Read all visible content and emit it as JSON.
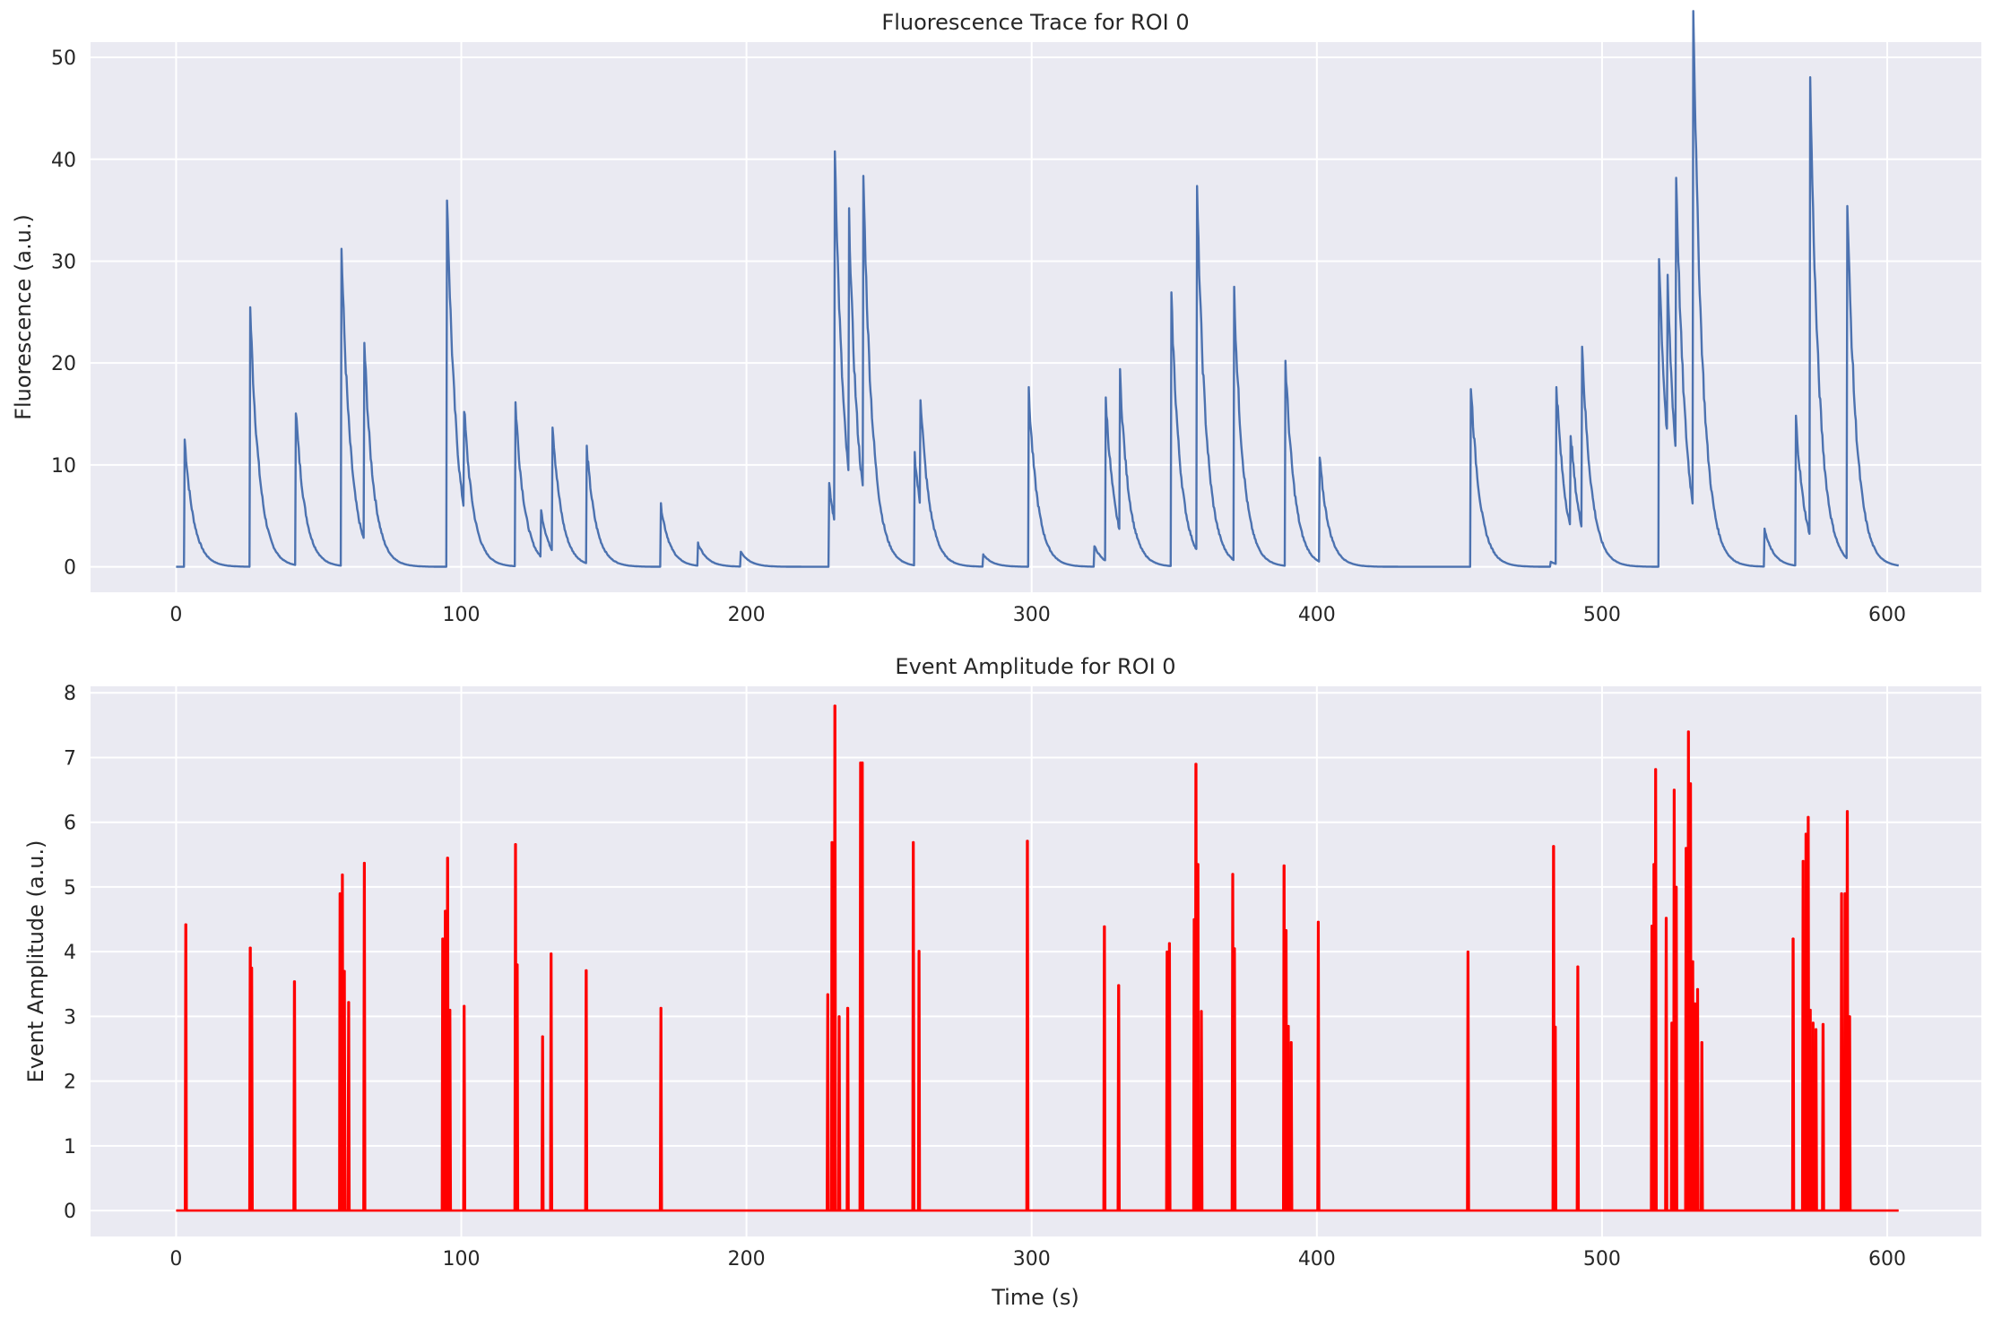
{
  "chart_data": [
    {
      "type": "line",
      "title": "Fluorescence Trace for ROI 0",
      "xlabel": "",
      "ylabel": "Fluorescence (a.u.)",
      "xlim": [
        -30,
        633
      ],
      "ylim": [
        -2.5,
        51.5
      ],
      "xticks": [
        0,
        100,
        200,
        300,
        400,
        500,
        600
      ],
      "yticks": [
        0,
        10,
        20,
        30,
        40,
        50
      ],
      "grid": true,
      "color": "#4c72b0",
      "events": [
        [
          3,
          12.5
        ],
        [
          26,
          25.3
        ],
        [
          42,
          15.3
        ],
        [
          58,
          31.2
        ],
        [
          66,
          19.4
        ],
        [
          95,
          36.7
        ],
        [
          101,
          10.0
        ],
        [
          119,
          16.0
        ],
        [
          128,
          4.5
        ],
        [
          132,
          12.5
        ],
        [
          144,
          11.3
        ],
        [
          170,
          6.0
        ],
        [
          183,
          2.2
        ],
        [
          198,
          1.5
        ],
        [
          229,
          8.0
        ],
        [
          231,
          36.9
        ],
        [
          236,
          25.8
        ],
        [
          241,
          31.2
        ],
        [
          259,
          10.9
        ],
        [
          261,
          10.9
        ],
        [
          283,
          1.2
        ],
        [
          299,
          17.0
        ],
        [
          322,
          2.0
        ],
        [
          326,
          15.9
        ],
        [
          331,
          15.3
        ],
        [
          349,
          26.2
        ],
        [
          358,
          35.3
        ],
        [
          371,
          26.3
        ],
        [
          389,
          20.0
        ],
        [
          401,
          10.2
        ],
        [
          454,
          18.0
        ],
        [
          482,
          0.5
        ],
        [
          484,
          17.7
        ],
        [
          489,
          9.5
        ],
        [
          493,
          18.0
        ],
        [
          520,
          30.8
        ],
        [
          523,
          15.9
        ],
        [
          526,
          27.6
        ],
        [
          532,
          49.2
        ],
        [
          557,
          3.6
        ],
        [
          568,
          14.4
        ],
        [
          573,
          44.6
        ],
        [
          586,
          34.8
        ]
      ],
      "x_end": 604
    },
    {
      "type": "line",
      "title": "Event Amplitude for ROI 0",
      "xlabel": "Time (s)",
      "ylabel": "Event Amplitude (a.u.)",
      "xlim": [
        -30,
        633
      ],
      "ylim": [
        -0.4,
        8.1
      ],
      "xticks": [
        0,
        100,
        200,
        300,
        400,
        500,
        600
      ],
      "yticks": [
        0,
        1,
        2,
        3,
        4,
        5,
        6,
        7,
        8
      ],
      "grid": true,
      "color": "#ff0000",
      "spikes": [
        [
          3.4,
          4.42
        ],
        [
          26,
          4.06
        ],
        [
          26.5,
          3.75
        ],
        [
          41.5,
          3.54
        ],
        [
          57.5,
          4.9
        ],
        [
          58.3,
          5.19
        ],
        [
          59,
          3.7
        ],
        [
          60.5,
          3.22
        ],
        [
          66,
          5.37
        ],
        [
          93.5,
          4.2
        ],
        [
          94.4,
          4.63
        ],
        [
          95.2,
          5.45
        ],
        [
          96,
          3.1
        ],
        [
          101,
          3.16
        ],
        [
          119,
          5.66
        ],
        [
          119.6,
          3.8
        ],
        [
          128.5,
          2.69
        ],
        [
          131.5,
          3.97
        ],
        [
          143.8,
          3.71
        ],
        [
          170,
          3.13
        ],
        [
          228.5,
          3.34
        ],
        [
          230,
          5.69
        ],
        [
          231,
          7.8
        ],
        [
          232.5,
          3.0
        ],
        [
          235.5,
          3.13
        ],
        [
          240,
          6.92
        ],
        [
          240.6,
          6.92
        ],
        [
          258.5,
          5.69
        ],
        [
          260.5,
          4.01
        ],
        [
          298.5,
          5.71
        ],
        [
          325.5,
          4.39
        ],
        [
          330.5,
          3.48
        ],
        [
          347.5,
          4.0
        ],
        [
          348.3,
          4.13
        ],
        [
          357,
          4.5
        ],
        [
          357.6,
          6.9
        ],
        [
          358.3,
          5.35
        ],
        [
          359.5,
          3.08
        ],
        [
          370.5,
          5.2
        ],
        [
          371.1,
          4.05
        ],
        [
          388.5,
          5.33
        ],
        [
          389.2,
          4.33
        ],
        [
          390,
          2.85
        ],
        [
          391,
          2.6
        ],
        [
          400.5,
          4.46
        ],
        [
          453,
          4.0
        ],
        [
          483,
          5.63
        ],
        [
          483.6,
          2.84
        ],
        [
          491.5,
          3.77
        ],
        [
          517.5,
          4.4
        ],
        [
          518.2,
          5.35
        ],
        [
          518.8,
          6.82
        ],
        [
          522.5,
          4.52
        ],
        [
          524.5,
          2.9
        ],
        [
          525.3,
          6.5
        ],
        [
          526,
          5.0
        ],
        [
          529.5,
          5.6
        ],
        [
          530.3,
          7.4
        ],
        [
          531,
          6.6
        ],
        [
          531.8,
          3.85
        ],
        [
          532.6,
          3.2
        ],
        [
          533.5,
          3.42
        ],
        [
          535,
          2.6
        ],
        [
          567,
          4.2
        ],
        [
          570.5,
          5.4
        ],
        [
          571.5,
          5.82
        ],
        [
          572.3,
          6.08
        ],
        [
          573,
          3.1
        ],
        [
          574,
          2.9
        ],
        [
          575,
          2.8
        ],
        [
          577.5,
          2.88
        ],
        [
          584,
          4.9
        ],
        [
          585.2,
          4.9
        ],
        [
          586,
          6.17
        ],
        [
          586.8,
          3.0
        ]
      ],
      "x_end": 604
    }
  ]
}
